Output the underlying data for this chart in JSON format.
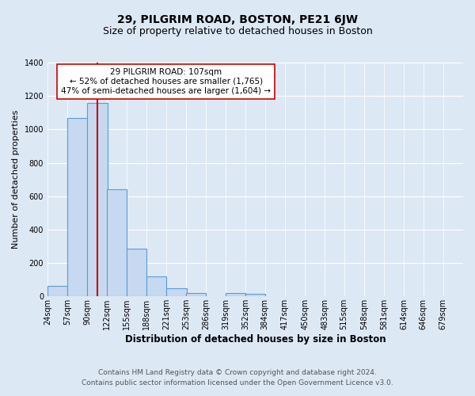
{
  "title": "29, PILGRIM ROAD, BOSTON, PE21 6JW",
  "subtitle": "Size of property relative to detached houses in Boston",
  "xlabel": "Distribution of detached houses by size in Boston",
  "ylabel": "Number of detached properties",
  "bin_labels": [
    "24sqm",
    "57sqm",
    "90sqm",
    "122sqm",
    "155sqm",
    "188sqm",
    "221sqm",
    "253sqm",
    "286sqm",
    "319sqm",
    "352sqm",
    "384sqm",
    "417sqm",
    "450sqm",
    "483sqm",
    "515sqm",
    "548sqm",
    "581sqm",
    "614sqm",
    "646sqm",
    "679sqm"
  ],
  "bin_edges": [
    24,
    57,
    90,
    122,
    155,
    188,
    221,
    253,
    286,
    319,
    352,
    384,
    417,
    450,
    483,
    515,
    548,
    581,
    614,
    646,
    679
  ],
  "bar_heights": [
    65,
    1070,
    1160,
    640,
    285,
    120,
    50,
    20,
    0,
    20,
    15,
    0,
    0,
    0,
    0,
    0,
    0,
    0,
    0,
    0
  ],
  "bar_color": "#c6d9f0",
  "bar_edge_color": "#5b9bd5",
  "bar_linewidth": 0.8,
  "vline_x": 107,
  "vline_color": "#cc0000",
  "vline_linewidth": 1.5,
  "ylim": [
    0,
    1400
  ],
  "yticks": [
    0,
    200,
    400,
    600,
    800,
    1000,
    1200,
    1400
  ],
  "annotation_title": "29 PILGRIM ROAD: 107sqm",
  "annotation_line1": "← 52% of detached houses are smaller (1,765)",
  "annotation_line2": "47% of semi-detached houses are larger (1,604) →",
  "annotation_box_color": "#ffffff",
  "annotation_box_edge_color": "#cc0000",
  "annotation_fontsize": 7.5,
  "footnote1": "Contains HM Land Registry data © Crown copyright and database right 2024.",
  "footnote2": "Contains public sector information licensed under the Open Government Licence v3.0.",
  "background_color": "#dde8f5",
  "plot_bg_color": "#dde8f5",
  "grid_color": "#ffffff",
  "title_fontsize": 10,
  "subtitle_fontsize": 9,
  "xlabel_fontsize": 8.5,
  "ylabel_fontsize": 8,
  "footnote_fontsize": 6.5,
  "tick_fontsize": 7
}
